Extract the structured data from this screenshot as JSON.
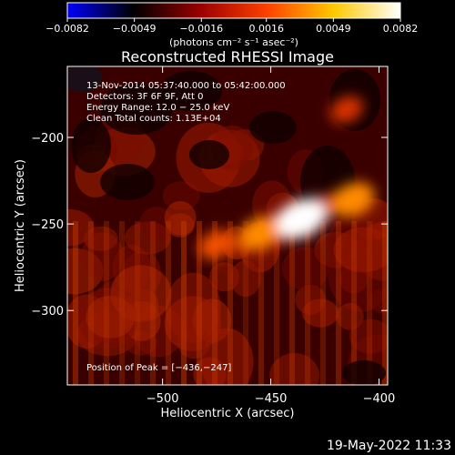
{
  "chart_data": {
    "type": "heatmap",
    "title": "Reconstructed RHESSI Image",
    "xlabel": "Heliocentric X (arcsec)",
    "ylabel": "Heliocentric Y (arcsec)",
    "xlim": [
      -544,
      -396
    ],
    "ylim": [
      -343,
      -159
    ],
    "x_ticks": [
      -500,
      -450,
      -400
    ],
    "x_tick_labels": [
      "−500",
      "−450",
      "−400"
    ],
    "y_ticks": [
      -200,
      -250,
      -300
    ],
    "y_tick_labels": [
      "−200",
      "−250",
      "−300"
    ],
    "colorbar": {
      "ticks": [
        -0.0082,
        -0.0049,
        -0.0016,
        0.0016,
        0.0049,
        0.0082
      ],
      "tick_labels": [
        "−0.0082",
        "−0.0049",
        "−0.0016",
        "0.0016",
        "0.0049",
        "0.0082"
      ],
      "range": [
        -0.0082,
        0.0082
      ],
      "units": "(photons cm⁻² s⁻¹ asec⁻²)",
      "colors": [
        "#0000ff",
        "#000000",
        "#9b0000",
        "#ff4000",
        "#ffc800",
        "#ffffff"
      ]
    },
    "annotations": [
      "13-Nov-2014 05:37:40.000 to 05:42:00.000",
      "Detectors: 3F 6F 9F, Att 0",
      "Energy Range: 12.0 − 25.0 keV",
      "Clean     Total counts: 1.13E+04"
    ],
    "peak": {
      "label": "Position of Peak = [−436,−247]",
      "x": -436,
      "y": -247
    },
    "sources": [
      {
        "x": -436,
        "y": -247,
        "value": 0.0082
      },
      {
        "x": -412,
        "y": -236,
        "value": 0.0062
      },
      {
        "x": -455,
        "y": -255,
        "value": 0.0052
      },
      {
        "x": -475,
        "y": -262,
        "value": 0.004
      },
      {
        "x": -415,
        "y": -184,
        "value": 0.003
      }
    ],
    "grid": false
  },
  "footer": {
    "timestamp": "19-May-2022 11:33"
  }
}
